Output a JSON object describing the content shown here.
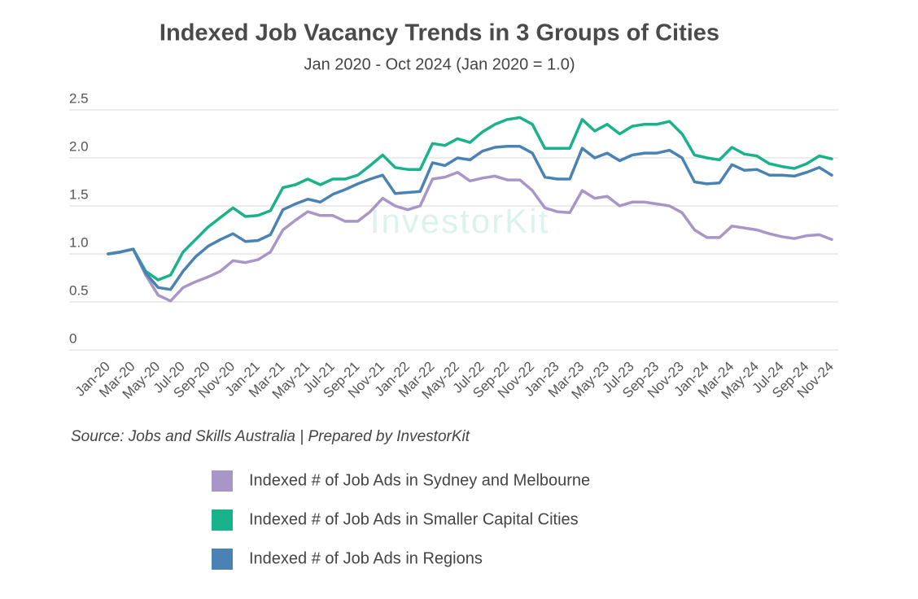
{
  "chart_data": {
    "type": "line",
    "title": "Indexed Job Vacancy Trends in 3 Groups of Cities",
    "subtitle": "Jan 2020 - Oct 2024 (Jan 2020 = 1.0)",
    "source": "Source: Jobs and Skills Australia | Prepared by InvestorKit",
    "watermark": "InvestorKit",
    "categories": [
      "Jan-20",
      null,
      "Mar-20",
      null,
      "May-20",
      null,
      "Jul-20",
      null,
      "Sep-20",
      null,
      "Nov-20",
      null,
      "Jan-21",
      null,
      "Mar-21",
      null,
      "May-21",
      null,
      "Jul-21",
      null,
      "Sep-21",
      null,
      "Nov-21",
      null,
      "Jan-22",
      null,
      "Mar-22",
      null,
      "May-22",
      null,
      "Jul-22",
      null,
      "Sep-22",
      null,
      "Nov-22",
      null,
      "Jan-23",
      null,
      "Mar-23",
      null,
      "May-23",
      null,
      "Jul-23",
      null,
      "Sep-23",
      null,
      "Nov-23",
      null,
      "Jan-24",
      null,
      "Mar-24",
      null,
      "May-24",
      null,
      "Jul-24",
      null,
      "Sep-24",
      null,
      "Nov-24"
    ],
    "series": [
      {
        "name": "Indexed # of Job Ads in Sydney and Melbourne",
        "color": "#a996c8",
        "values": [
          1.0,
          1.02,
          1.05,
          0.78,
          0.57,
          0.51,
          0.65,
          0.71,
          0.76,
          0.82,
          0.93,
          0.91,
          0.94,
          1.02,
          1.25,
          1.35,
          1.44,
          1.4,
          1.4,
          1.34,
          1.34,
          1.44,
          1.58,
          1.5,
          1.46,
          1.5,
          1.78,
          1.8,
          1.85,
          1.76,
          1.79,
          1.81,
          1.77,
          1.77,
          1.66,
          1.48,
          1.44,
          1.43,
          1.66,
          1.58,
          1.6,
          1.5,
          1.54,
          1.54,
          1.52,
          1.5,
          1.43,
          1.25,
          1.17,
          1.17,
          1.29,
          1.27,
          1.25,
          1.21,
          1.18,
          1.16,
          1.19,
          1.2,
          1.15
        ]
      },
      {
        "name": "Indexed # of Job Ads in Smaller Capital Cities",
        "color": "#19b28a",
        "values": [
          1.0,
          1.02,
          1.05,
          0.82,
          0.73,
          0.78,
          1.02,
          1.15,
          1.28,
          1.38,
          1.48,
          1.39,
          1.4,
          1.45,
          1.69,
          1.72,
          1.78,
          1.72,
          1.78,
          1.78,
          1.82,
          1.92,
          2.03,
          1.9,
          1.88,
          1.88,
          2.15,
          2.13,
          2.2,
          2.16,
          2.27,
          2.35,
          2.4,
          2.42,
          2.35,
          2.1,
          2.1,
          2.1,
          2.4,
          2.28,
          2.35,
          2.25,
          2.33,
          2.35,
          2.35,
          2.38,
          2.25,
          2.03,
          2.0,
          1.98,
          2.11,
          2.04,
          2.02,
          1.94,
          1.91,
          1.89,
          1.94,
          2.02,
          1.99
        ]
      },
      {
        "name": "Indexed # of Job Ads in Regions",
        "color": "#4a82b4",
        "values": [
          1.0,
          1.02,
          1.05,
          0.8,
          0.65,
          0.63,
          0.82,
          0.97,
          1.08,
          1.15,
          1.21,
          1.13,
          1.14,
          1.2,
          1.46,
          1.52,
          1.57,
          1.54,
          1.62,
          1.67,
          1.73,
          1.78,
          1.82,
          1.63,
          1.64,
          1.65,
          1.95,
          1.92,
          2.0,
          1.98,
          2.07,
          2.11,
          2.12,
          2.12,
          2.05,
          1.8,
          1.78,
          1.78,
          2.1,
          2.0,
          2.05,
          1.97,
          2.03,
          2.05,
          2.05,
          2.08,
          2.0,
          1.75,
          1.73,
          1.74,
          1.93,
          1.87,
          1.88,
          1.82,
          1.82,
          1.81,
          1.85,
          1.9,
          1.82
        ]
      }
    ],
    "ylim": [
      0,
      2.5
    ],
    "yticks": [
      0,
      0.5,
      {
        "value": 1,
        "label": "1.0"
      },
      1.5,
      {
        "value": 2,
        "label": "2.0"
      },
      2.5
    ],
    "grid": true,
    "legend": "bottom"
  }
}
